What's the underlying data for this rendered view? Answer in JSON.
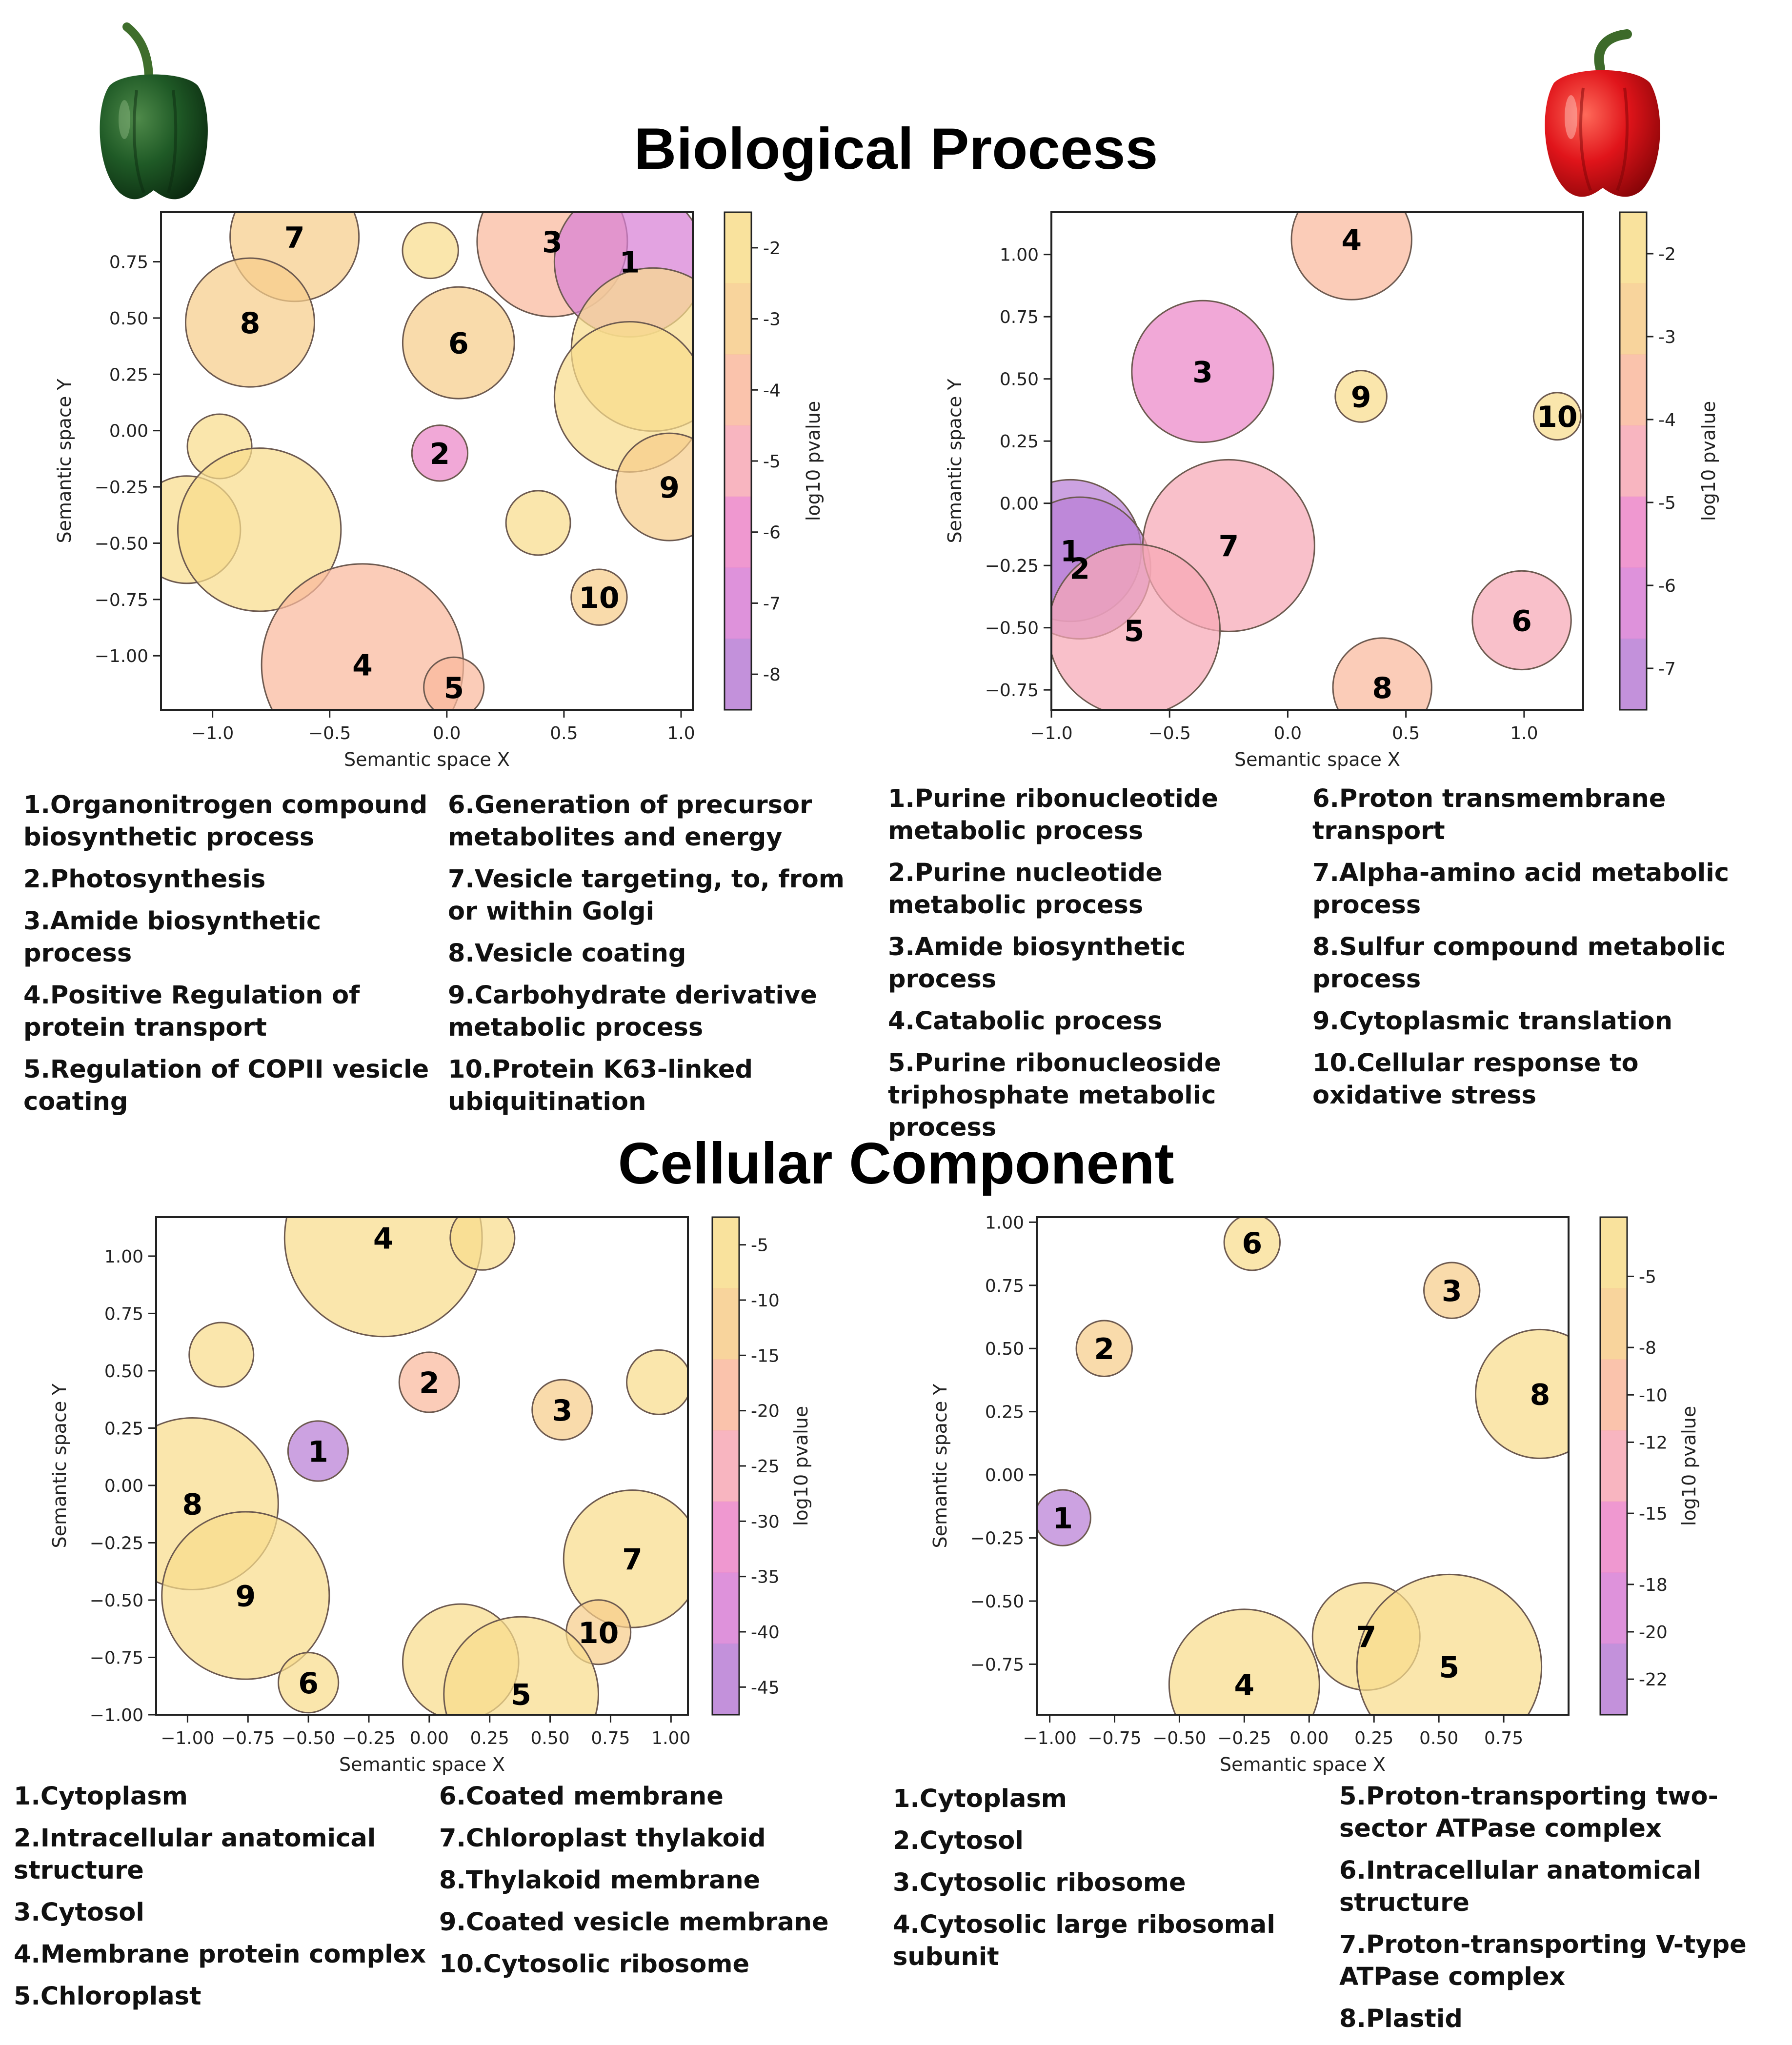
{
  "sections": {
    "biological_process": "Biological Process",
    "cellular_component": "Cellular Component"
  },
  "axis_text": {
    "xlabel": "Semantic space X",
    "ylabel": "Semantic space Y",
    "colorbar_label": "log10 pvalue"
  },
  "palette": {
    "colorscale": [
      "#b87ed5",
      "#d87fd5",
      "#ec86c8",
      "#f7a8b5",
      "#f9b99d",
      "#f7cd8b",
      "#f8dd8c"
    ],
    "bubble_stroke": "#6d5a50",
    "text": "#000000"
  },
  "icons": {
    "left": "green-bell-pepper-icon",
    "right": "red-bell-pepper-icon"
  },
  "chart_data": [
    {
      "type": "scatter",
      "id": "bp-green",
      "title": "Biological Process",
      "xlabel": "Semantic space X",
      "ylabel": "Semantic space Y",
      "xlim": [
        -1.22,
        1.05
      ],
      "ylim": [
        -1.24,
        0.97
      ],
      "xticks": [
        -1.0,
        -0.5,
        0.0,
        0.5,
        1.0
      ],
      "xtick_labels": [
        "−1.0",
        "−0.5",
        "0.0",
        "0.5",
        "1.0"
      ],
      "yticks": [
        0.75,
        0.5,
        0.25,
        0.0,
        -0.25,
        -0.5,
        -0.75,
        -1.0
      ],
      "ytick_labels": [
        "0.75",
        "0.50",
        "0.25",
        "0.00",
        "−0.25",
        "−0.50",
        "−0.75",
        "−1.00"
      ],
      "colorbar": {
        "label": "log10 pvalue",
        "range": [
          -8.5,
          -1.5
        ],
        "ticks": [
          -2,
          -3,
          -4,
          -5,
          -6,
          -7,
          -8
        ],
        "tick_labels": [
          "-2",
          "-3",
          "-4",
          "-5",
          "-6",
          "-7",
          "-8"
        ]
      },
      "points": [
        {
          "x": -0.65,
          "y": 0.86,
          "size": 3.0,
          "log10_pvalue": -3.2,
          "label": "7"
        },
        {
          "x": -0.07,
          "y": 0.8,
          "size": 1.3,
          "log10_pvalue": -1.8,
          "label": ""
        },
        {
          "x": 0.45,
          "y": 0.84,
          "size": 3.5,
          "log10_pvalue": -4.0,
          "label": "3"
        },
        {
          "x": 0.78,
          "y": 0.75,
          "size": 3.5,
          "log10_pvalue": -6.8,
          "label": "1"
        },
        {
          "x": -0.84,
          "y": 0.48,
          "size": 3.0,
          "log10_pvalue": -3.4,
          "label": "8"
        },
        {
          "x": 0.05,
          "y": 0.39,
          "size": 2.6,
          "log10_pvalue": -3.4,
          "label": "6"
        },
        {
          "x": 0.88,
          "y": 0.36,
          "size": 3.8,
          "log10_pvalue": -2.0,
          "label": ""
        },
        {
          "x": 0.78,
          "y": 0.15,
          "size": 3.5,
          "log10_pvalue": -2.0,
          "label": ""
        },
        {
          "x": -0.97,
          "y": -0.07,
          "size": 1.5,
          "log10_pvalue": -1.8,
          "label": ""
        },
        {
          "x": -0.03,
          "y": -0.1,
          "size": 1.3,
          "log10_pvalue": -6.2,
          "label": "2"
        },
        {
          "x": 0.95,
          "y": -0.25,
          "size": 2.5,
          "log10_pvalue": -3.3,
          "label": "9"
        },
        {
          "x": -1.11,
          "y": -0.44,
          "size": 2.5,
          "log10_pvalue": -1.9,
          "label": ""
        },
        {
          "x": -0.8,
          "y": -0.44,
          "size": 3.8,
          "log10_pvalue": -1.9,
          "label": ""
        },
        {
          "x": 0.39,
          "y": -0.41,
          "size": 1.5,
          "log10_pvalue": -1.9,
          "label": ""
        },
        {
          "x": 0.65,
          "y": -0.74,
          "size": 1.3,
          "log10_pvalue": -3.3,
          "label": "10"
        },
        {
          "x": -0.36,
          "y": -1.04,
          "size": 4.7,
          "log10_pvalue": -4.4,
          "label": "4"
        },
        {
          "x": 0.03,
          "y": -1.14,
          "size": 1.4,
          "log10_pvalue": -4.3,
          "label": "5"
        }
      ]
    },
    {
      "type": "scatter",
      "id": "bp-red",
      "title": "Biological Process",
      "xlabel": "Semantic space X",
      "ylabel": "Semantic space Y",
      "xlim": [
        -1.0,
        1.25
      ],
      "ylim": [
        -0.83,
        1.17
      ],
      "xticks": [
        -1.0,
        -0.5,
        0.0,
        0.5,
        1.0
      ],
      "xtick_labels": [
        "−1.0",
        "−0.5",
        "0.0",
        "0.5",
        "1.0"
      ],
      "yticks": [
        1.0,
        0.75,
        0.5,
        0.25,
        0.0,
        -0.25,
        -0.5,
        -0.75
      ],
      "ytick_labels": [
        "1.00",
        "0.75",
        "0.50",
        "0.25",
        "0.00",
        "−0.25",
        "−0.50",
        "−0.75"
      ],
      "colorbar": {
        "label": "log10 pvalue",
        "range": [
          -7.5,
          -1.5
        ],
        "ticks": [
          -2,
          -3,
          -4,
          -5,
          -6,
          -7
        ],
        "tick_labels": [
          "-2",
          "-3",
          "-4",
          "-5",
          "-6",
          "-7"
        ]
      },
      "points": [
        {
          "x": 0.27,
          "y": 1.06,
          "size": 2.8,
          "log10_pvalue": -4.0,
          "label": "4"
        },
        {
          "x": -0.36,
          "y": 0.53,
          "size": 3.3,
          "log10_pvalue": -5.7,
          "label": "3"
        },
        {
          "x": 0.31,
          "y": 0.43,
          "size": 1.2,
          "log10_pvalue": -1.7,
          "label": "9"
        },
        {
          "x": 1.14,
          "y": 0.35,
          "size": 1.1,
          "log10_pvalue": -1.8,
          "label": "10"
        },
        {
          "x": -0.92,
          "y": -0.19,
          "size": 3.3,
          "log10_pvalue": -7.2,
          "label": "1"
        },
        {
          "x": -0.88,
          "y": -0.26,
          "size": 3.3,
          "log10_pvalue": -7.0,
          "label": "2"
        },
        {
          "x": -0.25,
          "y": -0.17,
          "size": 4.0,
          "log10_pvalue": -4.1,
          "label": "7"
        },
        {
          "x": -0.65,
          "y": -0.51,
          "size": 4.0,
          "log10_pvalue": -4.3,
          "label": "5"
        },
        {
          "x": 0.99,
          "y": -0.47,
          "size": 2.3,
          "log10_pvalue": -4.2,
          "label": "6"
        },
        {
          "x": 0.4,
          "y": -0.74,
          "size": 2.3,
          "log10_pvalue": -3.3,
          "label": "8"
        }
      ]
    },
    {
      "type": "scatter",
      "id": "cc-green",
      "title": "Cellular Component",
      "xlabel": "Semantic space X",
      "ylabel": "Semantic space Y",
      "xlim": [
        -1.13,
        1.07
      ],
      "ylim": [
        -1.0,
        1.17
      ],
      "xticks": [
        -1.0,
        -0.75,
        -0.5,
        -0.25,
        0.0,
        0.25,
        0.5,
        0.75,
        1.0
      ],
      "xtick_labels": [
        "−1.00",
        "−0.75",
        "−0.50",
        "−0.25",
        "0.00",
        "0.25",
        "0.50",
        "0.75",
        "1.00"
      ],
      "yticks": [
        1.0,
        0.75,
        0.5,
        0.25,
        0.0,
        -0.25,
        -0.5,
        -0.75,
        -1.0
      ],
      "ytick_labels": [
        "1.00",
        "0.75",
        "0.50",
        "0.25",
        "0.00",
        "−0.25",
        "−0.50",
        "−0.75",
        "−1.00"
      ],
      "colorbar": {
        "label": "log10 pvalue",
        "range": [
          -47.5,
          -2.5
        ],
        "ticks": [
          -5,
          -10,
          -15,
          -20,
          -25,
          -30,
          -35,
          -40,
          -45
        ],
        "tick_labels": [
          "-5",
          "-10",
          "-15",
          "-20",
          "-25",
          "-30",
          "-35",
          "-40",
          "-45"
        ]
      },
      "points": [
        {
          "x": -0.19,
          "y": 1.08,
          "size": 4.6,
          "log10_pvalue": -3.0,
          "label": "4"
        },
        {
          "x": 0.22,
          "y": 1.08,
          "size": 1.5,
          "log10_pvalue": -3.0,
          "label": ""
        },
        {
          "x": -0.86,
          "y": 0.57,
          "size": 1.5,
          "log10_pvalue": -3.0,
          "label": ""
        },
        {
          "x": 0.0,
          "y": 0.45,
          "size": 1.4,
          "log10_pvalue": -21.0,
          "label": "2"
        },
        {
          "x": 0.55,
          "y": 0.33,
          "size": 1.4,
          "log10_pvalue": -13.0,
          "label": "3"
        },
        {
          "x": 0.95,
          "y": 0.45,
          "size": 1.5,
          "log10_pvalue": -3.0,
          "label": ""
        },
        {
          "x": -0.46,
          "y": 0.15,
          "size": 1.4,
          "log10_pvalue": -43.0,
          "label": "1"
        },
        {
          "x": -0.98,
          "y": -0.08,
          "size": 4.0,
          "log10_pvalue": -3.0,
          "label": "8"
        },
        {
          "x": -0.76,
          "y": -0.48,
          "size": 3.9,
          "log10_pvalue": -3.0,
          "label": "9"
        },
        {
          "x": 0.84,
          "y": -0.32,
          "size": 3.2,
          "log10_pvalue": -3.0,
          "label": "7"
        },
        {
          "x": 0.7,
          "y": -0.64,
          "size": 1.5,
          "log10_pvalue": -10.0,
          "label": "10"
        },
        {
          "x": 0.13,
          "y": -0.77,
          "size": 2.7,
          "log10_pvalue": -3.0,
          "label": ""
        },
        {
          "x": 0.38,
          "y": -0.91,
          "size": 3.6,
          "log10_pvalue": -3.0,
          "label": "5"
        },
        {
          "x": -0.5,
          "y": -0.86,
          "size": 1.4,
          "log10_pvalue": -6.0,
          "label": "6"
        }
      ]
    },
    {
      "type": "scatter",
      "id": "cc-red",
      "title": "Cellular Component",
      "xlabel": "Semantic space X",
      "ylabel": "Semantic space Y",
      "xlim": [
        -1.05,
        1.0
      ],
      "ylim": [
        -0.95,
        1.02
      ],
      "xticks": [
        -1.0,
        -0.75,
        -0.5,
        -0.25,
        0.0,
        0.25,
        0.5,
        0.75
      ],
      "xtick_labels": [
        "−1.00",
        "−0.75",
        "−0.50",
        "−0.25",
        "0.00",
        "0.25",
        "0.50",
        "0.75"
      ],
      "yticks": [
        1.0,
        0.75,
        0.5,
        0.25,
        0.0,
        -0.25,
        -0.5,
        -0.75
      ],
      "ytick_labels": [
        "1.00",
        "0.75",
        "0.50",
        "0.25",
        "0.00",
        "−0.25",
        "−0.50",
        "−0.75"
      ],
      "colorbar": {
        "label": "log10 pvalue",
        "range": [
          -23.5,
          -2.5
        ],
        "ticks": [
          -5,
          -8,
          -10,
          -12,
          -15,
          -18,
          -20,
          -22
        ],
        "tick_labels": [
          "-5",
          "-8",
          "-10",
          "-12",
          "-15",
          "-18",
          "-20",
          "-22"
        ]
      },
      "points": [
        {
          "x": -0.22,
          "y": 0.92,
          "size": 1.3,
          "log10_pvalue": -3.5,
          "label": "6"
        },
        {
          "x": 0.55,
          "y": 0.73,
          "size": 1.3,
          "log10_pvalue": -8.5,
          "label": "3"
        },
        {
          "x": -0.79,
          "y": 0.5,
          "size": 1.3,
          "log10_pvalue": -8.5,
          "label": "2"
        },
        {
          "x": 0.89,
          "y": 0.32,
          "size": 3.0,
          "log10_pvalue": -3.5,
          "label": "8"
        },
        {
          "x": -0.95,
          "y": -0.17,
          "size": 1.3,
          "log10_pvalue": -22.5,
          "label": "1"
        },
        {
          "x": 0.22,
          "y": -0.64,
          "size": 2.5,
          "log10_pvalue": -3.5,
          "label": "7"
        },
        {
          "x": -0.25,
          "y": -0.83,
          "size": 3.5,
          "log10_pvalue": -3.5,
          "label": "4"
        },
        {
          "x": 0.54,
          "y": -0.76,
          "size": 4.3,
          "log10_pvalue": -3.5,
          "label": "5"
        }
      ]
    }
  ],
  "legends": {
    "bp_green_col1": [
      "1.Organonitrogen compound biosynthetic process",
      "2.Photosynthesis",
      "3.Amide biosynthetic process",
      "4.Positive Regulation of protein transport",
      "5.Regulation of COPII vesicle coating"
    ],
    "bp_green_col2": [
      "6.Generation of precursor metabolites and energy",
      "7.Vesicle targeting, to, from or within Golgi",
      "8.Vesicle coating",
      "9.Carbohydrate derivative metabolic process",
      "10.Protein K63-linked ubiquitination"
    ],
    "bp_red_col1": [
      "1.Purine ribonucleotide metabolic process",
      "2.Purine nucleotide metabolic process",
      "3.Amide biosynthetic process",
      "4.Catabolic process",
      "5.Purine ribonucleoside triphosphate metabolic process"
    ],
    "bp_red_col2": [
      "6.Proton transmembrane transport",
      "7.Alpha-amino acid metabolic process",
      "8.Sulfur compound metabolic process",
      "9.Cytoplasmic translation",
      "10.Cellular response to oxidative stress"
    ],
    "cc_green_col1": [
      "1.Cytoplasm",
      "2.Intracellular anatomical structure",
      "3.Cytosol",
      "4.Membrane protein complex",
      "5.Chloroplast"
    ],
    "cc_green_col2": [
      "6.Coated membrane",
      "7.Chloroplast thylakoid",
      "8.Thylakoid membrane",
      "9.Coated vesicle membrane",
      "10.Cytosolic ribosome"
    ],
    "cc_red_col1": [
      "1.Cytoplasm",
      "2.Cytosol",
      "3.Cytosolic ribosome",
      "4.Cytosolic large ribosomal subunit"
    ],
    "cc_red_col2": [
      "5.Proton-transporting two-sector ATPase complex",
      "6.Intracellular anatomical structure",
      "7.Proton-transporting V-type ATPase complex",
      "8.Plastid"
    ]
  }
}
